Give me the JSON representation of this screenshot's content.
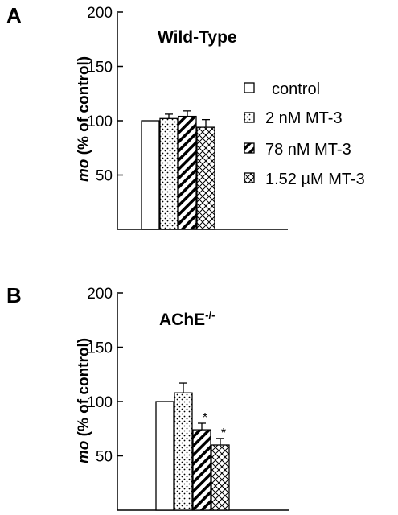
{
  "chart_data": [
    {
      "type": "bar",
      "panel_label": "A",
      "title": "Wild-Type",
      "ylabel": "mo (% of control)",
      "ylabel_italic_part": "mo",
      "ylabel_rest": " (% of control)",
      "ylim": [
        0,
        200
      ],
      "yticks": [
        "50",
        "100",
        "150",
        "200"
      ],
      "ytick_values": [
        50,
        100,
        150,
        200
      ],
      "categories": [
        "control",
        "2 nM MT-3",
        "78 nM MT-3",
        "1.52 µM MT-3"
      ],
      "values": [
        100,
        102,
        104,
        94
      ],
      "errors": [
        0,
        4,
        5,
        7
      ],
      "significance": [
        "",
        "",
        "",
        ""
      ],
      "legend": [
        "control",
        "2 nM MT-3",
        "78 nM MT-3",
        "1.52 µM MT-3"
      ]
    },
    {
      "type": "bar",
      "panel_label": "B",
      "title_base": "AChE",
      "title_sup": "-/-",
      "ylabel": "mo (% of control)",
      "ylabel_italic_part": "mo",
      "ylabel_rest": " (% of control)",
      "ylim": [
        0,
        200
      ],
      "yticks": [
        "50",
        "100",
        "150",
        "200"
      ],
      "ytick_values": [
        50,
        100,
        150,
        200
      ],
      "categories": [
        "control",
        "2 nM MT-3",
        "78 nM MT-3",
        "1.52 µM MT-3"
      ],
      "values": [
        100,
        108,
        74,
        60
      ],
      "errors": [
        0,
        9,
        6,
        6
      ],
      "significance": [
        "",
        "",
        "*",
        "*"
      ]
    }
  ],
  "colors": {
    "ink": "#000000",
    "bar_fill": "#ffffff"
  }
}
